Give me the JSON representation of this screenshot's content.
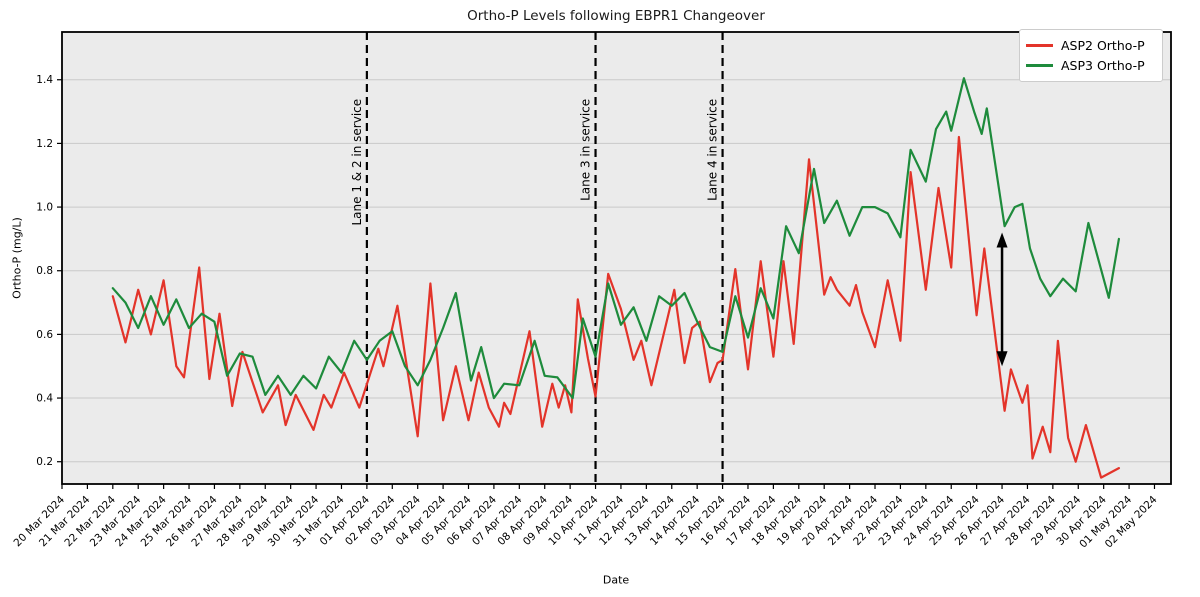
{
  "chart_data": {
    "type": "line",
    "title": "Ortho-P Levels following EBPR1 Changeover",
    "xlabel": "Date",
    "ylabel": "Ortho-P (mg/L)",
    "x_tick_labels": [
      "20 Mar 2024",
      "21 Mar 2024",
      "22 Mar 2024",
      "23 Mar 2024",
      "24 Mar 2024",
      "25 Mar 2024",
      "26 Mar 2024",
      "27 Mar 2024",
      "28 Mar 2024",
      "29 Mar 2024",
      "30 Mar 2024",
      "31 Mar 2024",
      "01 Apr 2024",
      "02 Apr 2024",
      "03 Apr 2024",
      "04 Apr 2024",
      "05 Apr 2024",
      "06 Apr 2024",
      "07 Apr 2024",
      "08 Apr 2024",
      "09 Apr 2024",
      "10 Apr 2024",
      "11 Apr 2024",
      "12 Apr 2024",
      "13 Apr 2024",
      "14 Apr 2024",
      "15 Apr 2024",
      "16 Apr 2024",
      "17 Apr 2024",
      "18 Apr 2024",
      "19 Apr 2024",
      "20 Apr 2024",
      "21 Apr 2024",
      "22 Apr 2024",
      "23 Apr 2024",
      "24 Apr 2024",
      "25 Apr 2024",
      "26 Apr 2024",
      "27 Apr 2024",
      "28 Apr 2024",
      "29 Apr 2024",
      "30 Apr 2024",
      "01 May 2024",
      "02 May 2024"
    ],
    "yticks": [
      0.2,
      0.4,
      0.6,
      0.8,
      1.0,
      1.2,
      1.4
    ],
    "xlim": [
      0,
      43.65
    ],
    "ylim": [
      0.13,
      1.55
    ],
    "grid": "horizontal",
    "legend_position": "upper right",
    "colors": {
      "plot_bg": "#ebebeb",
      "grid": "#c9c9c9",
      "spine": "#000000",
      "event_line": "#000000",
      "arrow": "#000000"
    },
    "annotation_top": 1.34,
    "annotations": [
      {
        "label": "Lane 1 & 2 in service",
        "t": 12
      },
      {
        "label": "Lane 3 in service",
        "t": 21
      },
      {
        "label": "Lane 4 in service",
        "t": 26
      }
    ],
    "arrow": {
      "t": 37,
      "v_bottom": 0.5,
      "v_top": 0.92
    },
    "series": [
      {
        "name": "ASP2 Ortho-P",
        "color": "#e3342a",
        "points": [
          [
            2.0,
            0.72
          ],
          [
            2.5,
            0.575
          ],
          [
            3.0,
            0.74
          ],
          [
            3.5,
            0.6
          ],
          [
            4.0,
            0.77
          ],
          [
            4.5,
            0.5
          ],
          [
            4.8,
            0.465
          ],
          [
            5.4,
            0.81
          ],
          [
            5.8,
            0.46
          ],
          [
            6.2,
            0.665
          ],
          [
            6.7,
            0.375
          ],
          [
            7.1,
            0.545
          ],
          [
            7.9,
            0.355
          ],
          [
            8.5,
            0.44
          ],
          [
            8.8,
            0.315
          ],
          [
            9.2,
            0.41
          ],
          [
            9.9,
            0.3
          ],
          [
            10.3,
            0.41
          ],
          [
            10.6,
            0.37
          ],
          [
            11.1,
            0.48
          ],
          [
            11.7,
            0.37
          ],
          [
            12.45,
            0.555
          ],
          [
            12.65,
            0.5
          ],
          [
            13.2,
            0.69
          ],
          [
            14.0,
            0.28
          ],
          [
            14.5,
            0.76
          ],
          [
            15.0,
            0.33
          ],
          [
            15.5,
            0.5
          ],
          [
            16.0,
            0.33
          ],
          [
            16.4,
            0.48
          ],
          [
            16.8,
            0.37
          ],
          [
            17.2,
            0.31
          ],
          [
            17.4,
            0.385
          ],
          [
            17.65,
            0.35
          ],
          [
            18.4,
            0.61
          ],
          [
            18.9,
            0.31
          ],
          [
            19.3,
            0.445
          ],
          [
            19.55,
            0.37
          ],
          [
            19.8,
            0.44
          ],
          [
            20.05,
            0.355
          ],
          [
            20.3,
            0.71
          ],
          [
            20.7,
            0.525
          ],
          [
            21.0,
            0.405
          ],
          [
            21.5,
            0.79
          ],
          [
            22.0,
            0.68
          ],
          [
            22.5,
            0.52
          ],
          [
            22.8,
            0.58
          ],
          [
            23.2,
            0.44
          ],
          [
            24.1,
            0.74
          ],
          [
            24.5,
            0.51
          ],
          [
            24.8,
            0.62
          ],
          [
            25.1,
            0.64
          ],
          [
            25.5,
            0.45
          ],
          [
            25.8,
            0.51
          ],
          [
            26.0,
            0.52
          ],
          [
            26.5,
            0.805
          ],
          [
            27.0,
            0.49
          ],
          [
            27.5,
            0.83
          ],
          [
            28.0,
            0.53
          ],
          [
            28.4,
            0.83
          ],
          [
            28.8,
            0.57
          ],
          [
            29.4,
            1.15
          ],
          [
            30.0,
            0.725
          ],
          [
            30.25,
            0.78
          ],
          [
            30.5,
            0.74
          ],
          [
            31.0,
            0.69
          ],
          [
            31.25,
            0.755
          ],
          [
            31.5,
            0.67
          ],
          [
            32.0,
            0.56
          ],
          [
            32.5,
            0.77
          ],
          [
            33.0,
            0.58
          ],
          [
            33.4,
            1.11
          ],
          [
            34.0,
            0.74
          ],
          [
            34.5,
            1.06
          ],
          [
            35.0,
            0.81
          ],
          [
            35.3,
            1.22
          ],
          [
            35.8,
            0.81
          ],
          [
            36.0,
            0.66
          ],
          [
            36.3,
            0.87
          ],
          [
            37.1,
            0.36
          ],
          [
            37.35,
            0.49
          ],
          [
            37.8,
            0.385
          ],
          [
            38.0,
            0.44
          ],
          [
            38.2,
            0.21
          ],
          [
            38.6,
            0.31
          ],
          [
            38.9,
            0.23
          ],
          [
            39.2,
            0.58
          ],
          [
            39.6,
            0.275
          ],
          [
            39.9,
            0.2
          ],
          [
            40.3,
            0.315
          ],
          [
            40.9,
            0.15
          ],
          [
            41.6,
            0.18
          ]
        ]
      },
      {
        "name": "ASP3 Ortho-P",
        "color": "#1e8b3c",
        "points": [
          [
            2.0,
            0.745
          ],
          [
            2.5,
            0.7
          ],
          [
            3.0,
            0.62
          ],
          [
            3.5,
            0.72
          ],
          [
            4.0,
            0.63
          ],
          [
            4.5,
            0.71
          ],
          [
            5.0,
            0.62
          ],
          [
            5.5,
            0.665
          ],
          [
            6.0,
            0.64
          ],
          [
            6.5,
            0.47
          ],
          [
            7.0,
            0.54
          ],
          [
            7.5,
            0.53
          ],
          [
            8.0,
            0.41
          ],
          [
            8.5,
            0.47
          ],
          [
            9.0,
            0.41
          ],
          [
            9.5,
            0.47
          ],
          [
            10.0,
            0.43
          ],
          [
            10.5,
            0.53
          ],
          [
            11.0,
            0.48
          ],
          [
            11.5,
            0.58
          ],
          [
            12.0,
            0.52
          ],
          [
            12.5,
            0.58
          ],
          [
            13.0,
            0.61
          ],
          [
            13.5,
            0.5
          ],
          [
            14.0,
            0.44
          ],
          [
            14.5,
            0.52
          ],
          [
            15.0,
            0.62
          ],
          [
            15.5,
            0.73
          ],
          [
            16.1,
            0.455
          ],
          [
            16.5,
            0.56
          ],
          [
            17.0,
            0.4
          ],
          [
            17.4,
            0.445
          ],
          [
            18.0,
            0.44
          ],
          [
            18.6,
            0.58
          ],
          [
            19.0,
            0.47
          ],
          [
            19.5,
            0.465
          ],
          [
            20.1,
            0.4
          ],
          [
            20.5,
            0.65
          ],
          [
            21.0,
            0.53
          ],
          [
            21.5,
            0.76
          ],
          [
            22.0,
            0.63
          ],
          [
            22.5,
            0.685
          ],
          [
            23.0,
            0.58
          ],
          [
            23.5,
            0.72
          ],
          [
            24.0,
            0.69
          ],
          [
            24.5,
            0.73
          ],
          [
            25.0,
            0.64
          ],
          [
            25.5,
            0.56
          ],
          [
            26.0,
            0.545
          ],
          [
            26.5,
            0.72
          ],
          [
            27.0,
            0.59
          ],
          [
            27.5,
            0.745
          ],
          [
            28.0,
            0.65
          ],
          [
            28.5,
            0.94
          ],
          [
            29.0,
            0.855
          ],
          [
            29.6,
            1.12
          ],
          [
            30.0,
            0.95
          ],
          [
            30.5,
            1.02
          ],
          [
            31.0,
            0.91
          ],
          [
            31.5,
            1.0
          ],
          [
            32.0,
            1.0
          ],
          [
            32.5,
            0.98
          ],
          [
            33.0,
            0.905
          ],
          [
            33.4,
            1.18
          ],
          [
            34.0,
            1.08
          ],
          [
            34.4,
            1.245
          ],
          [
            34.8,
            1.3
          ],
          [
            35.0,
            1.24
          ],
          [
            35.5,
            1.405
          ],
          [
            35.9,
            1.3
          ],
          [
            36.2,
            1.23
          ],
          [
            36.4,
            1.31
          ],
          [
            37.1,
            0.94
          ],
          [
            37.5,
            1.0
          ],
          [
            37.8,
            1.01
          ],
          [
            38.1,
            0.87
          ],
          [
            38.5,
            0.775
          ],
          [
            38.9,
            0.72
          ],
          [
            39.4,
            0.775
          ],
          [
            39.9,
            0.735
          ],
          [
            40.4,
            0.95
          ],
          [
            41.2,
            0.715
          ],
          [
            41.6,
            0.9
          ]
        ]
      }
    ]
  }
}
